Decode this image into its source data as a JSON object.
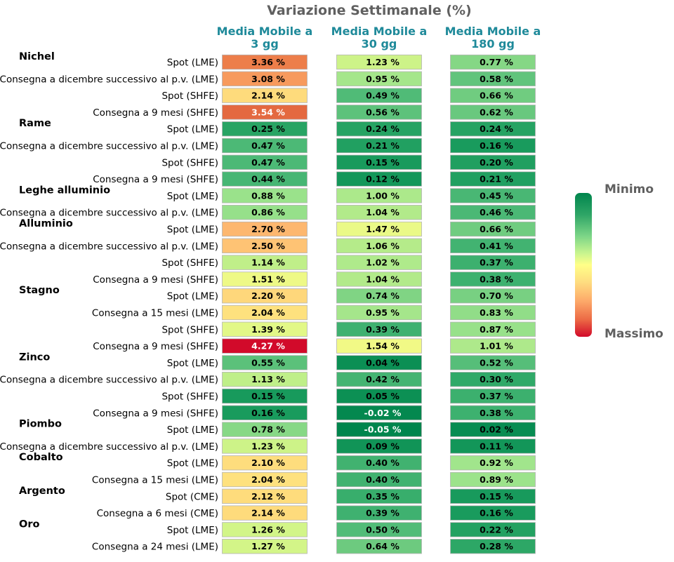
{
  "chart_data": {
    "type": "heatmap",
    "title": "Variazione Settimanale (%)",
    "columns": [
      [
        "Media Mobile a",
        "3 gg"
      ],
      [
        "Media Mobile a",
        "30 gg"
      ],
      [
        "Media Mobile a",
        "180 gg"
      ]
    ],
    "value_suffix": " %",
    "color_range": [
      -0.05,
      4.27
    ],
    "legend": {
      "top_label": "Minimo",
      "bottom_label": "Massimo"
    },
    "groups": [
      {
        "name": "Nichel",
        "rows": [
          {
            "label": "Spot (LME)",
            "values": [
              3.36,
              1.23,
              0.77
            ]
          },
          {
            "label": "Consegna a dicembre successivo al p.v. (LME)",
            "values": [
              3.08,
              0.95,
              0.58
            ]
          },
          {
            "label": "Spot (SHFE)",
            "values": [
              2.14,
              0.49,
              0.66
            ]
          },
          {
            "label": "Consegna a 9 mesi (SHFE)",
            "values": [
              3.54,
              0.56,
              0.62
            ]
          }
        ]
      },
      {
        "name": "Rame",
        "rows": [
          {
            "label": "Spot (LME)",
            "values": [
              0.25,
              0.24,
              0.24
            ]
          },
          {
            "label": "Consegna a dicembre successivo al p.v. (LME)",
            "values": [
              0.47,
              0.21,
              0.16
            ]
          },
          {
            "label": "Spot (SHFE)",
            "values": [
              0.47,
              0.15,
              0.2
            ]
          },
          {
            "label": "Consegna a 9 mesi (SHFE)",
            "values": [
              0.44,
              0.12,
              0.21
            ]
          }
        ]
      },
      {
        "name": "Leghe alluminio",
        "rows": [
          {
            "label": "Spot (LME)",
            "values": [
              0.88,
              1.0,
              0.45
            ]
          },
          {
            "label": "Consegna a dicembre successivo al p.v. (LME)",
            "values": [
              0.86,
              1.04,
              0.46
            ]
          }
        ]
      },
      {
        "name": "Alluminio",
        "rows": [
          {
            "label": "Spot (LME)",
            "values": [
              2.7,
              1.47,
              0.66
            ]
          },
          {
            "label": "Consegna a dicembre successivo al p.v. (LME)",
            "values": [
              2.5,
              1.06,
              0.41
            ]
          },
          {
            "label": "Spot (SHFE)",
            "values": [
              1.14,
              1.02,
              0.37
            ]
          },
          {
            "label": "Consegna a 9 mesi (SHFE)",
            "values": [
              1.51,
              1.04,
              0.38
            ]
          }
        ]
      },
      {
        "name": "Stagno",
        "rows": [
          {
            "label": "Spot (LME)",
            "values": [
              2.2,
              0.74,
              0.7
            ]
          },
          {
            "label": "Consegna a 15 mesi (LME)",
            "values": [
              2.04,
              0.95,
              0.83
            ]
          },
          {
            "label": "Spot (SHFE)",
            "values": [
              1.39,
              0.39,
              0.87
            ]
          },
          {
            "label": "Consegna a 9 mesi (SHFE)",
            "values": [
              4.27,
              1.54,
              1.01
            ]
          }
        ]
      },
      {
        "name": "Zinco",
        "rows": [
          {
            "label": "Spot (LME)",
            "values": [
              0.55,
              0.04,
              0.52
            ]
          },
          {
            "label": "Consegna a dicembre successivo al p.v. (LME)",
            "values": [
              1.13,
              0.42,
              0.3
            ]
          },
          {
            "label": "Spot (SHFE)",
            "values": [
              0.15,
              0.05,
              0.37
            ]
          },
          {
            "label": "Consegna a 9 mesi (SHFE)",
            "values": [
              0.16,
              -0.02,
              0.38
            ]
          }
        ]
      },
      {
        "name": "Piombo",
        "rows": [
          {
            "label": "Spot (LME)",
            "values": [
              0.78,
              -0.05,
              0.02
            ]
          },
          {
            "label": "Consegna a dicembre successivo al p.v. (LME)",
            "values": [
              1.23,
              0.09,
              0.11
            ]
          }
        ]
      },
      {
        "name": "Cobalto",
        "rows": [
          {
            "label": "Spot (LME)",
            "values": [
              2.1,
              0.4,
              0.92
            ]
          },
          {
            "label": "Consegna a 15 mesi (LME)",
            "values": [
              2.04,
              0.4,
              0.89
            ]
          }
        ]
      },
      {
        "name": "Argento",
        "rows": [
          {
            "label": "Spot (CME)",
            "values": [
              2.12,
              0.35,
              0.15
            ]
          },
          {
            "label": "Consegna a 6 mesi (CME)",
            "values": [
              2.14,
              0.39,
              0.16
            ]
          }
        ]
      },
      {
        "name": "Oro",
        "rows": [
          {
            "label": "Spot (LME)",
            "values": [
              1.26,
              0.5,
              0.22
            ]
          },
          {
            "label": "Consegna a 24 mesi (LME)",
            "values": [
              1.27,
              0.64,
              0.28
            ]
          }
        ]
      }
    ]
  }
}
